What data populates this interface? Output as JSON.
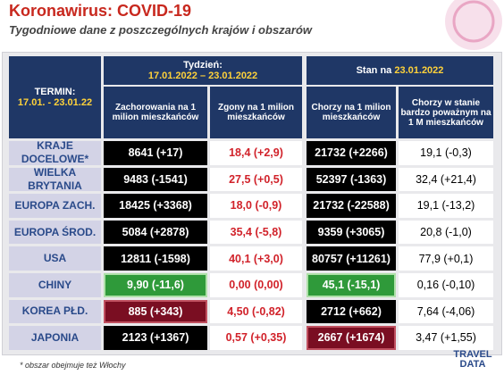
{
  "header": {
    "title": "Koronawirus: COVID-19",
    "subtitle": "Tygodniowe dane z poszczególnych krajów i obszarów"
  },
  "table": {
    "termin_label": "TERMIN:",
    "termin_dates": "17.01. - 23.01.22",
    "week_label": "Tydzień:",
    "week_dates": "17.01.2022 – 23.01.2022",
    "state_label": "Stan na",
    "state_date": "23.01.2022",
    "columns": [
      "Zachorowania na 1 milion mieszkańców",
      "Zgony na 1 milion mieszkańców",
      "Chorzy na 1 milion mieszkańców",
      "Chorzy w stanie bardzo poważnym na 1 M mieszkańców"
    ],
    "rows": [
      {
        "label": "KRAJE DOCELOWE*",
        "cells": [
          "8641 (+17)",
          "18,4 (+2,9)",
          "21732 (+2266)",
          "19,1 (-0,3)"
        ]
      },
      {
        "label": "WIELKA BRYTANIA",
        "cells": [
          "9483 (-1541)",
          "27,5 (+0,5)",
          "52397 (-1363)",
          "32,4 (+21,4)"
        ]
      },
      {
        "label": "EUROPA ZACH.",
        "cells": [
          "18425 (+3368)",
          "18,0 (-0,9)",
          "21732 (-22588)",
          "19,1 (-13,2)"
        ]
      },
      {
        "label": "EUROPA ŚROD.",
        "cells": [
          "5084 (+2878)",
          "35,4 (-5,8)",
          "9359 (+3065)",
          "20,8 (-1,0)"
        ]
      },
      {
        "label": "USA",
        "cells": [
          "12811 (-1598)",
          "40,1 (+3,0)",
          "80757 (+11261)",
          "77,9 (+0,1)"
        ]
      },
      {
        "label": "CHINY",
        "cells": [
          "9,90 (-11,6)",
          "0,00 (0,00)",
          "45,1 (-15,1)",
          "0,16 (-0,10)"
        ]
      },
      {
        "label": "KOREA PŁD.",
        "cells": [
          "885 (+343)",
          "4,50 (-0,82)",
          "2712 (+662)",
          "7,64 (-4,06)"
        ]
      },
      {
        "label": "JAPONIA",
        "cells": [
          "2123 (+1367)",
          "0,57 (+0,35)",
          "2667 (+1674)",
          "3,47 (+1,55)"
        ]
      }
    ]
  },
  "footnote": "* obszar obejmuje też Włochy",
  "logo": {
    "top": "TRAVEL",
    "bottom": "DATA"
  }
}
